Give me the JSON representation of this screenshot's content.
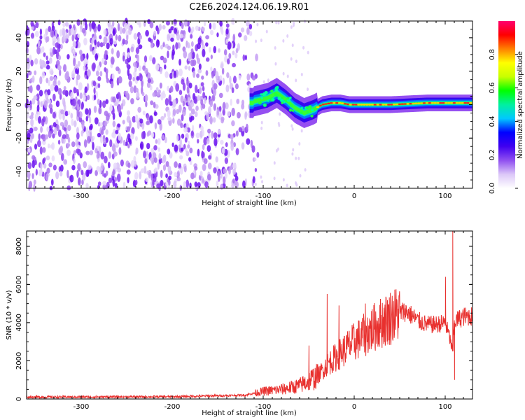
{
  "figure_title": "C2E6.2024.124.06.19.R01",
  "chart_data": [
    {
      "type": "heatmap",
      "title": "C2E6.2024.124.06.19.R01",
      "xlabel": "Height of straight line (km)",
      "ylabel": "Frequency (Hz)",
      "xlim": [
        -360,
        130
      ],
      "ylim": [
        -50,
        50
      ],
      "xticks": [
        -300,
        -200,
        -100,
        0,
        100
      ],
      "yticks": [
        -40,
        -20,
        0,
        20,
        40
      ],
      "colorbar": {
        "label": "Normalized spectral amplitude",
        "range": [
          0,
          1
        ],
        "ticks": [
          0.0,
          0.2,
          0.4,
          0.6,
          0.8
        ],
        "tick_labels": [
          "0.0",
          "0.2",
          "0.4",
          "0.6",
          "0.8"
        ],
        "colors": [
          "#ffffff",
          "#dcc8f8",
          "#9050f0",
          "#4000f0",
          "#0000ff",
          "#00c8ff",
          "#00f0a0",
          "#00ff00",
          "#c8ff00",
          "#ffff00",
          "#ff8000",
          "#ff0000",
          "#ff0070"
        ]
      },
      "ridge": {
        "description_points_x": [
          -110,
          -95,
          -85,
          -75,
          -65,
          -55,
          -45,
          -35,
          -25,
          -15,
          -5,
          10,
          40,
          80,
          100,
          130
        ],
        "center_freq": [
          2,
          4,
          7,
          3,
          -2,
          -5,
          -3,
          0,
          1,
          1,
          0,
          0,
          0,
          1,
          1,
          1
        ]
      }
    },
    {
      "type": "line",
      "xlabel": "Height of straight line (km)",
      "ylabel": "SNR (10 * v/v)",
      "xlim": [
        -360,
        130
      ],
      "ylim": [
        0,
        8800
      ],
      "xticks": [
        -300,
        -200,
        -100,
        0,
        100
      ],
      "yticks": [
        0,
        2000,
        4000,
        6000,
        8000
      ],
      "series": [
        {
          "name": "SNR",
          "color": "#e8302e",
          "trend_x": [
            -360,
            -200,
            -120,
            -100,
            -80,
            -60,
            -40,
            -30,
            -20,
            -10,
            0,
            10,
            20,
            30,
            40,
            50,
            55,
            60,
            70,
            80,
            90,
            100,
            105,
            108,
            110,
            115,
            120,
            130
          ],
          "trend_y": [
            100,
            120,
            200,
            400,
            500,
            700,
            1200,
            1800,
            2200,
            2600,
            3000,
            3300,
            3700,
            4000,
            4300,
            4500,
            4600,
            4500,
            4100,
            3900,
            3900,
            4000,
            3200,
            2500,
            4000,
            4200,
            4300,
            4350
          ],
          "spikes": [
            {
              "x": -50,
              "y": 2800
            },
            {
              "x": -30,
              "y": 5500
            },
            {
              "x": -17,
              "y": 4900
            },
            {
              "x": 12,
              "y": 5000
            },
            {
              "x": 100,
              "y": 6400
            },
            {
              "x": 108,
              "y": 8800
            },
            {
              "x": 110,
              "y": 1000
            }
          ]
        }
      ]
    }
  ]
}
